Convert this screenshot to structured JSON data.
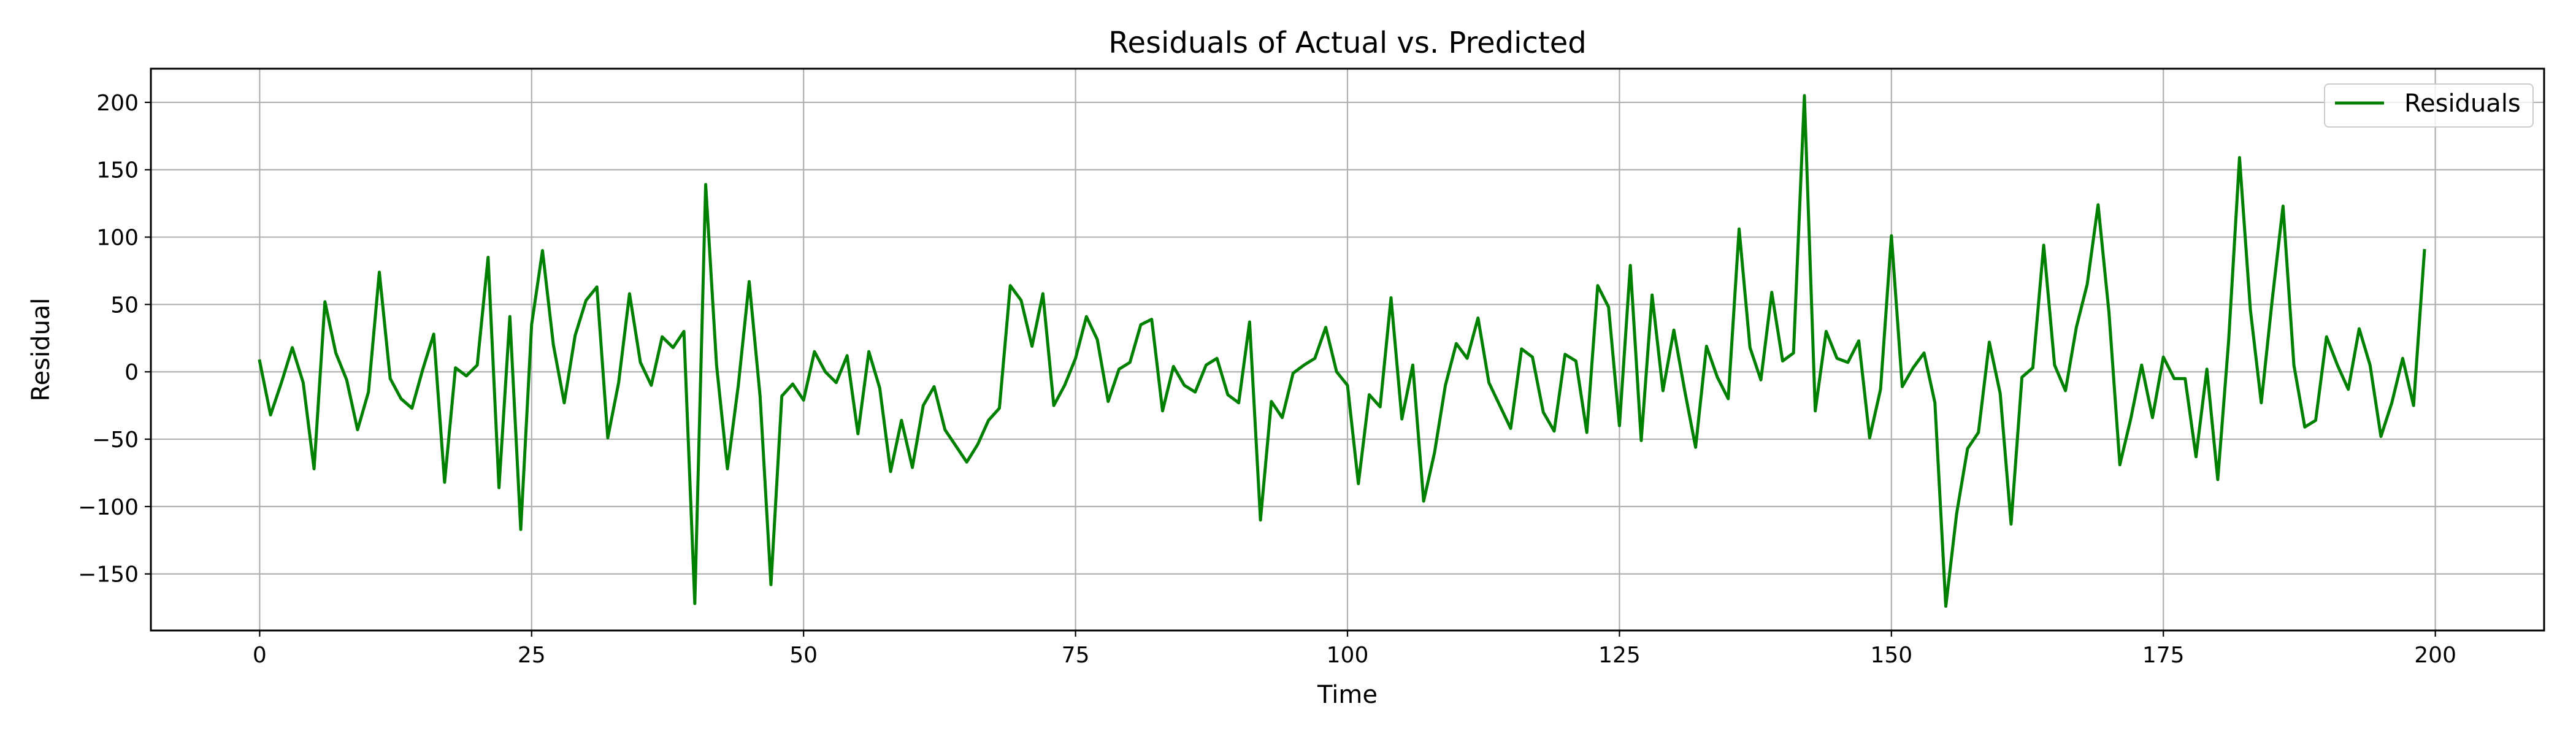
{
  "chart_data": {
    "type": "line",
    "title": "Residuals of Actual vs. Predicted",
    "xlabel": "Time",
    "ylabel": "Residual",
    "xlim": [
      -10,
      210
    ],
    "ylim": [
      -192,
      225
    ],
    "xticks": [
      0,
      25,
      50,
      75,
      100,
      125,
      150,
      175,
      200
    ],
    "yticks": [
      -150,
      -100,
      -50,
      0,
      50,
      100,
      150,
      200
    ],
    "grid": true,
    "legend": {
      "position": "top-right",
      "entries": [
        "Residuals"
      ]
    },
    "colors": {
      "line": "#008000",
      "grid": "#b0b0b0",
      "frame": "#000000"
    },
    "series": [
      {
        "name": "Residuals",
        "x_start": 0,
        "x_step": 1,
        "values": [
          8,
          -32,
          -8,
          18,
          -8,
          -72,
          52,
          14,
          -6,
          -43,
          -15,
          74,
          -5,
          -20,
          -27,
          2,
          28,
          -82,
          3,
          -3,
          5,
          85,
          -86,
          41,
          -117,
          35,
          90,
          20,
          -23,
          27,
          53,
          63,
          -49,
          -8,
          58,
          7,
          -10,
          26,
          18,
          30,
          -172,
          139,
          5,
          -72,
          -10,
          67,
          -18,
          -158,
          -18,
          -9,
          -21,
          15,
          0,
          -8,
          12,
          -46,
          15,
          -12,
          -74,
          -36,
          -71,
          -25,
          -11,
          -43,
          -55,
          -67,
          -54,
          -36,
          -27,
          64,
          53,
          19,
          58,
          -25,
          -10,
          10,
          41,
          24,
          -22,
          2,
          7,
          35,
          39,
          -29,
          4,
          -10,
          -15,
          5,
          10,
          -17,
          -23,
          37,
          -110,
          -22,
          -34,
          -1,
          5,
          10,
          33,
          0,
          -10,
          -83,
          -17,
          -26,
          55,
          -35,
          5,
          -96,
          -60,
          -10,
          21,
          10,
          40,
          -8,
          -25,
          -42,
          17,
          11,
          -30,
          -44,
          13,
          8,
          -45,
          64,
          48,
          -40,
          79,
          -51,
          57,
          -14,
          31,
          -14,
          -56,
          19,
          -4,
          -20,
          106,
          18,
          -6,
          59,
          8,
          14,
          205,
          -29,
          30,
          10,
          7,
          23,
          -49,
          -13,
          101,
          -11,
          3,
          14,
          -23,
          -174,
          -105,
          -57,
          -45,
          22,
          -16,
          -113,
          -4,
          3,
          94,
          5,
          -14,
          33,
          65,
          124,
          44,
          -69,
          -35,
          5,
          -34,
          11,
          -5,
          -5,
          -63,
          2,
          -80,
          23,
          159,
          46,
          -23,
          53,
          123,
          5,
          -41,
          -36,
          26,
          5,
          -13,
          32,
          5,
          -48,
          -23,
          10,
          -25,
          90
        ]
      }
    ]
  }
}
